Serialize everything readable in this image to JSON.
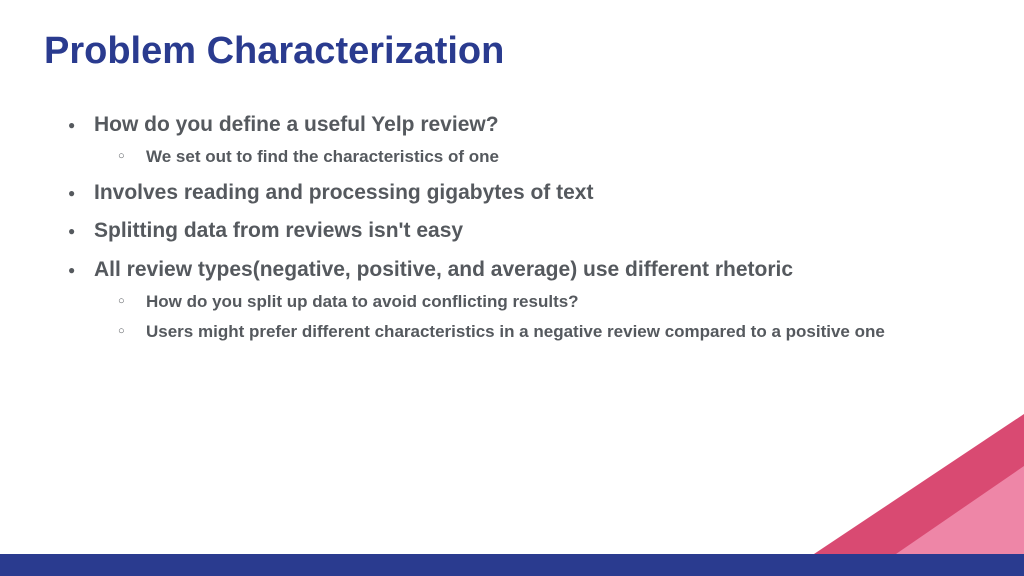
{
  "title": "Problem Characterization",
  "colors": {
    "title": "#2a3b8f",
    "body_text": "#55595e",
    "footer_bar": "#2a3b8f",
    "triangle_dark": "#d94a72",
    "triangle_light": "#ee86a7",
    "background": "#ffffff"
  },
  "typography": {
    "title_fontsize": 38,
    "title_weight": 700,
    "bullet_fontsize": 21,
    "bullet_weight": 700,
    "sub_bullet_fontsize": 17,
    "sub_bullet_weight": 700,
    "font_family": "Arial"
  },
  "bullets": [
    {
      "text": "How do you define a useful Yelp review?",
      "sub": [
        "We set out to find the characteristics of one"
      ]
    },
    {
      "text": "Involves reading and processing gigabytes of text",
      "sub": []
    },
    {
      "text": "Splitting data from reviews isn't easy",
      "sub": []
    },
    {
      "text": "All review types(negative, positive, and average) use different rhetoric",
      "sub": [
        "How do you split up data to avoid conflicting results?",
        "Users might prefer different characteristics in a negative review compared to a positive one"
      ]
    }
  ],
  "decorations": {
    "footer_bar_height": 22,
    "triangle_dark": {
      "base": 210,
      "height": 140
    },
    "triangle_light": {
      "base": 128,
      "height": 88
    }
  }
}
